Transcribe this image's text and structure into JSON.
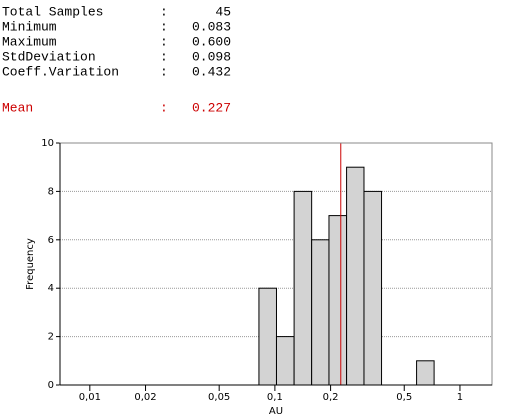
{
  "chart_data": {
    "type": "histogram",
    "stats": {
      "labels": [
        "Total Samples",
        "Minimum",
        "Maximum",
        "StdDeviation",
        "Coeff.Variation"
      ],
      "separator": ":",
      "values": [
        45,
        0.083,
        0.6,
        0.098,
        0.432
      ],
      "value_labels": [
        "45",
        "0.083",
        "0.600",
        "0.098",
        "0.432"
      ]
    },
    "mean": {
      "label": "Mean",
      "value": 0.227,
      "value_label": "0.227",
      "color": "#cc0000"
    },
    "x_label": "AU",
    "y_label": "Frequency",
    "bins": [
      0.082,
      0.102,
      0.127,
      0.158,
      0.196,
      0.244,
      0.303,
      0.377,
      0.469,
      0.583,
      0.725
    ],
    "values": [
      4,
      2,
      8,
      6,
      7,
      9,
      8,
      0,
      0,
      1
    ],
    "color": "#d3d3d3",
    "xlog": true,
    "xlim": [
      0.0069,
      1.49
    ],
    "xticks": [
      {
        "value": 0.01,
        "label": "0,01"
      },
      {
        "value": 0.02,
        "label": "0,02"
      },
      {
        "value": 0.05,
        "label": "0,05"
      },
      {
        "value": 0.1,
        "label": "0,1"
      },
      {
        "value": 0.2,
        "label": "0,2"
      },
      {
        "value": 0.5,
        "label": "0,5"
      },
      1
    ],
    "ylim": [
      0,
      10
    ],
    "yticks": [
      0,
      2,
      4,
      6,
      8,
      10
    ],
    "grid": true
  }
}
